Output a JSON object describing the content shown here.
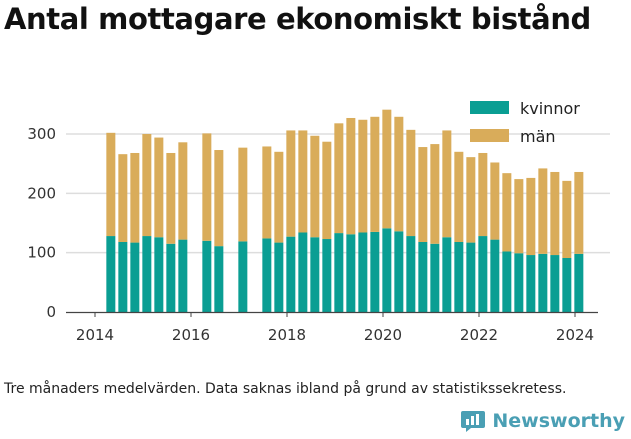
{
  "title": "Antal mottagare ekonomiskt bistånd",
  "caption": "Tre månaders medelvärden. Data saknas ibland på grund av statistikssekretess.",
  "brand": {
    "name": "Newsworthy",
    "icon": "bar-chart-icon",
    "color": "#4a9fb4"
  },
  "colors": {
    "kvinnor": "#0a9e93",
    "man": "#d9ac5a",
    "grid": "#dddddd",
    "axis": "#444444"
  },
  "chart_data": {
    "type": "bar",
    "stacked": true,
    "x_ticks": [
      "2014",
      "2016",
      "2018",
      "2020",
      "2022",
      "2024"
    ],
    "y_ticks": [
      "0",
      "100",
      "200",
      "300"
    ],
    "ylim": [
      0,
      350
    ],
    "xlim": [
      2013.7,
      2024.7
    ],
    "grid": true,
    "legend_position": "top-right",
    "series": [
      {
        "name": "kvinnor",
        "color": "#0a9e93"
      },
      {
        "name": "män",
        "color": "#d9ac5a"
      }
    ],
    "points": [
      {
        "x": 2014.33,
        "kvinnor": 128,
        "man": 174
      },
      {
        "x": 2014.58,
        "kvinnor": 118,
        "man": 148
      },
      {
        "x": 2014.83,
        "kvinnor": 117,
        "man": 151
      },
      {
        "x": 2015.08,
        "kvinnor": 128,
        "man": 172
      },
      {
        "x": 2015.33,
        "kvinnor": 126,
        "man": 168
      },
      {
        "x": 2015.58,
        "kvinnor": 115,
        "man": 153
      },
      {
        "x": 2015.83,
        "kvinnor": 122,
        "man": 164
      },
      {
        "x": 2016.33,
        "kvinnor": 120,
        "man": 181
      },
      {
        "x": 2016.58,
        "kvinnor": 111,
        "man": 162
      },
      {
        "x": 2017.08,
        "kvinnor": 119,
        "man": 158
      },
      {
        "x": 2017.58,
        "kvinnor": 124,
        "man": 155
      },
      {
        "x": 2017.83,
        "kvinnor": 117,
        "man": 153
      },
      {
        "x": 2018.08,
        "kvinnor": 127,
        "man": 179
      },
      {
        "x": 2018.33,
        "kvinnor": 134,
        "man": 172
      },
      {
        "x": 2018.58,
        "kvinnor": 126,
        "man": 171
      },
      {
        "x": 2018.83,
        "kvinnor": 123,
        "man": 164
      },
      {
        "x": 2019.08,
        "kvinnor": 133,
        "man": 185
      },
      {
        "x": 2019.33,
        "kvinnor": 131,
        "man": 196
      },
      {
        "x": 2019.58,
        "kvinnor": 134,
        "man": 190
      },
      {
        "x": 2019.83,
        "kvinnor": 135,
        "man": 194
      },
      {
        "x": 2020.08,
        "kvinnor": 141,
        "man": 200
      },
      {
        "x": 2020.33,
        "kvinnor": 136,
        "man": 193
      },
      {
        "x": 2020.58,
        "kvinnor": 128,
        "man": 179
      },
      {
        "x": 2020.83,
        "kvinnor": 118,
        "man": 160
      },
      {
        "x": 2021.08,
        "kvinnor": 115,
        "man": 168
      },
      {
        "x": 2021.33,
        "kvinnor": 126,
        "man": 180
      },
      {
        "x": 2021.58,
        "kvinnor": 118,
        "man": 152
      },
      {
        "x": 2021.83,
        "kvinnor": 117,
        "man": 144
      },
      {
        "x": 2022.08,
        "kvinnor": 128,
        "man": 140
      },
      {
        "x": 2022.33,
        "kvinnor": 122,
        "man": 130
      },
      {
        "x": 2022.58,
        "kvinnor": 102,
        "man": 132
      },
      {
        "x": 2022.83,
        "kvinnor": 99,
        "man": 125
      },
      {
        "x": 2023.08,
        "kvinnor": 96,
        "man": 130
      },
      {
        "x": 2023.33,
        "kvinnor": 98,
        "man": 144
      },
      {
        "x": 2023.58,
        "kvinnor": 96,
        "man": 140
      },
      {
        "x": 2023.83,
        "kvinnor": 91,
        "man": 130
      },
      {
        "x": 2024.08,
        "kvinnor": 98,
        "man": 138
      }
    ]
  }
}
